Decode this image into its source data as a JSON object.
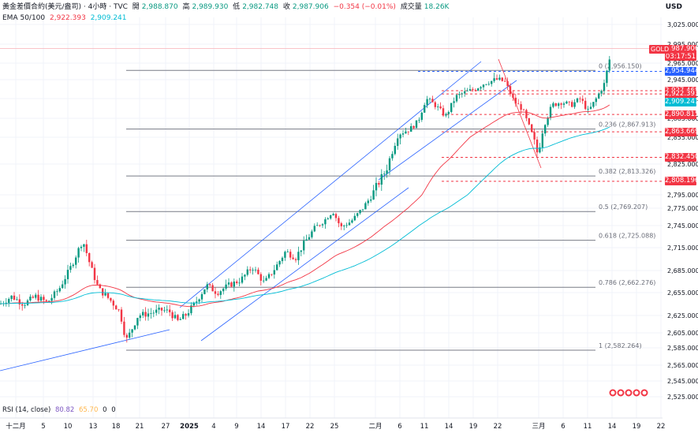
{
  "header": {
    "symbol": "黃金差價合約(美元/盎司) · 4小時 · TVC",
    "open_label": "開",
    "open": "2,988.870",
    "high_label": "高",
    "high": "2,989.930",
    "low_label": "低",
    "low": "2,982.748",
    "close_label": "收",
    "close": "2,987.906",
    "change": "−0.354 (−0.01%)",
    "volume_label": "成交量",
    "volume": "18.26K",
    "ema_label": "EMA 50/100",
    "ema50": "2,922.393",
    "ema100": "2,909.241"
  },
  "currency": "USD",
  "rsi": {
    "label": "RSI (14, close)",
    "v1": "80.82",
    "v2": "65.70",
    "v3": "0",
    "v4": "0"
  },
  "colors": {
    "up": "#089981",
    "down": "#f23645",
    "ema50": "#f23645",
    "ema100": "#00bcd4",
    "channel": "#2962ff",
    "fib": "#787b86"
  },
  "symbol_tag": "GOLD",
  "countdown": "03:17:51",
  "chart_data": {
    "type": "candlestick",
    "price_axis": {
      "ticks": [
        3025,
        2995,
        2965,
        2945,
        2915,
        2885,
        2855,
        2825,
        2795,
        2775,
        2745,
        2715,
        2685,
        2655,
        2625,
        2605,
        2585,
        2565,
        2545,
        2525
      ],
      "labels": [
        "3,025.000",
        "2,995.000",
        "2,965.000",
        "2,945.000",
        "2,915.000",
        "2,885.000",
        "2,855.000",
        "2,825.000",
        "2,795.000",
        "2,775.000",
        "2,745.000",
        "2,715.000",
        "2,685.000",
        "2,655.000",
        "2,625.000",
        "2,605.000",
        "2,585.000",
        "2,565.000",
        "2,545.000",
        "2,525.000"
      ]
    },
    "time_axis": {
      "labels": [
        "十二月",
        "5",
        "10",
        "13",
        "18",
        "21",
        "27",
        "2025",
        "4",
        "9",
        "14",
        "17",
        "22",
        "25",
        "二月",
        "6",
        "11",
        "14",
        "19",
        "22",
        "三月",
        "6",
        "11",
        "14",
        "19",
        "22"
      ]
    },
    "last_price": "2,987.906",
    "fibonacci": [
      {
        "level": "0",
        "price": 2956.15,
        "label": "0 (2,956.150)"
      },
      {
        "level": "0.236",
        "price": 2867.913,
        "label": "0.236 (2,867.913)"
      },
      {
        "level": "0.382",
        "price": 2813.326,
        "label": "0.382 (2,813.326)"
      },
      {
        "level": "0.5",
        "price": 2769.207,
        "label": "0.5 (2,769.207)"
      },
      {
        "level": "0.618",
        "price": 2725.088,
        "label": "0.618 (2,725.088)"
      },
      {
        "level": "0.786",
        "price": 2662.276,
        "label": "0.786 (2,662.276)"
      },
      {
        "level": "1",
        "price": 2582.264,
        "label": "1 (2,582.264)"
      }
    ],
    "price_tags": [
      {
        "label": "2,954.944",
        "price": 2954.944,
        "color": "#2962ff"
      },
      {
        "label": "2,927.468",
        "price": 2927.468,
        "color": "#f23645"
      },
      {
        "label": "2,922.393",
        "price": 2922.393,
        "color": "#f23645"
      },
      {
        "label": "2,909.241",
        "price": 2909.241,
        "color": "#00bcd4"
      },
      {
        "label": "2,890.815",
        "price": 2890.815,
        "color": "#f23645"
      },
      {
        "label": "2,863.669",
        "price": 2863.669,
        "color": "#f23645"
      },
      {
        "label": "2,832.450",
        "price": 2832.45,
        "color": "#f23645"
      },
      {
        "label": "2,808.196",
        "price": 2808.196,
        "color": "#f23645"
      }
    ]
  }
}
